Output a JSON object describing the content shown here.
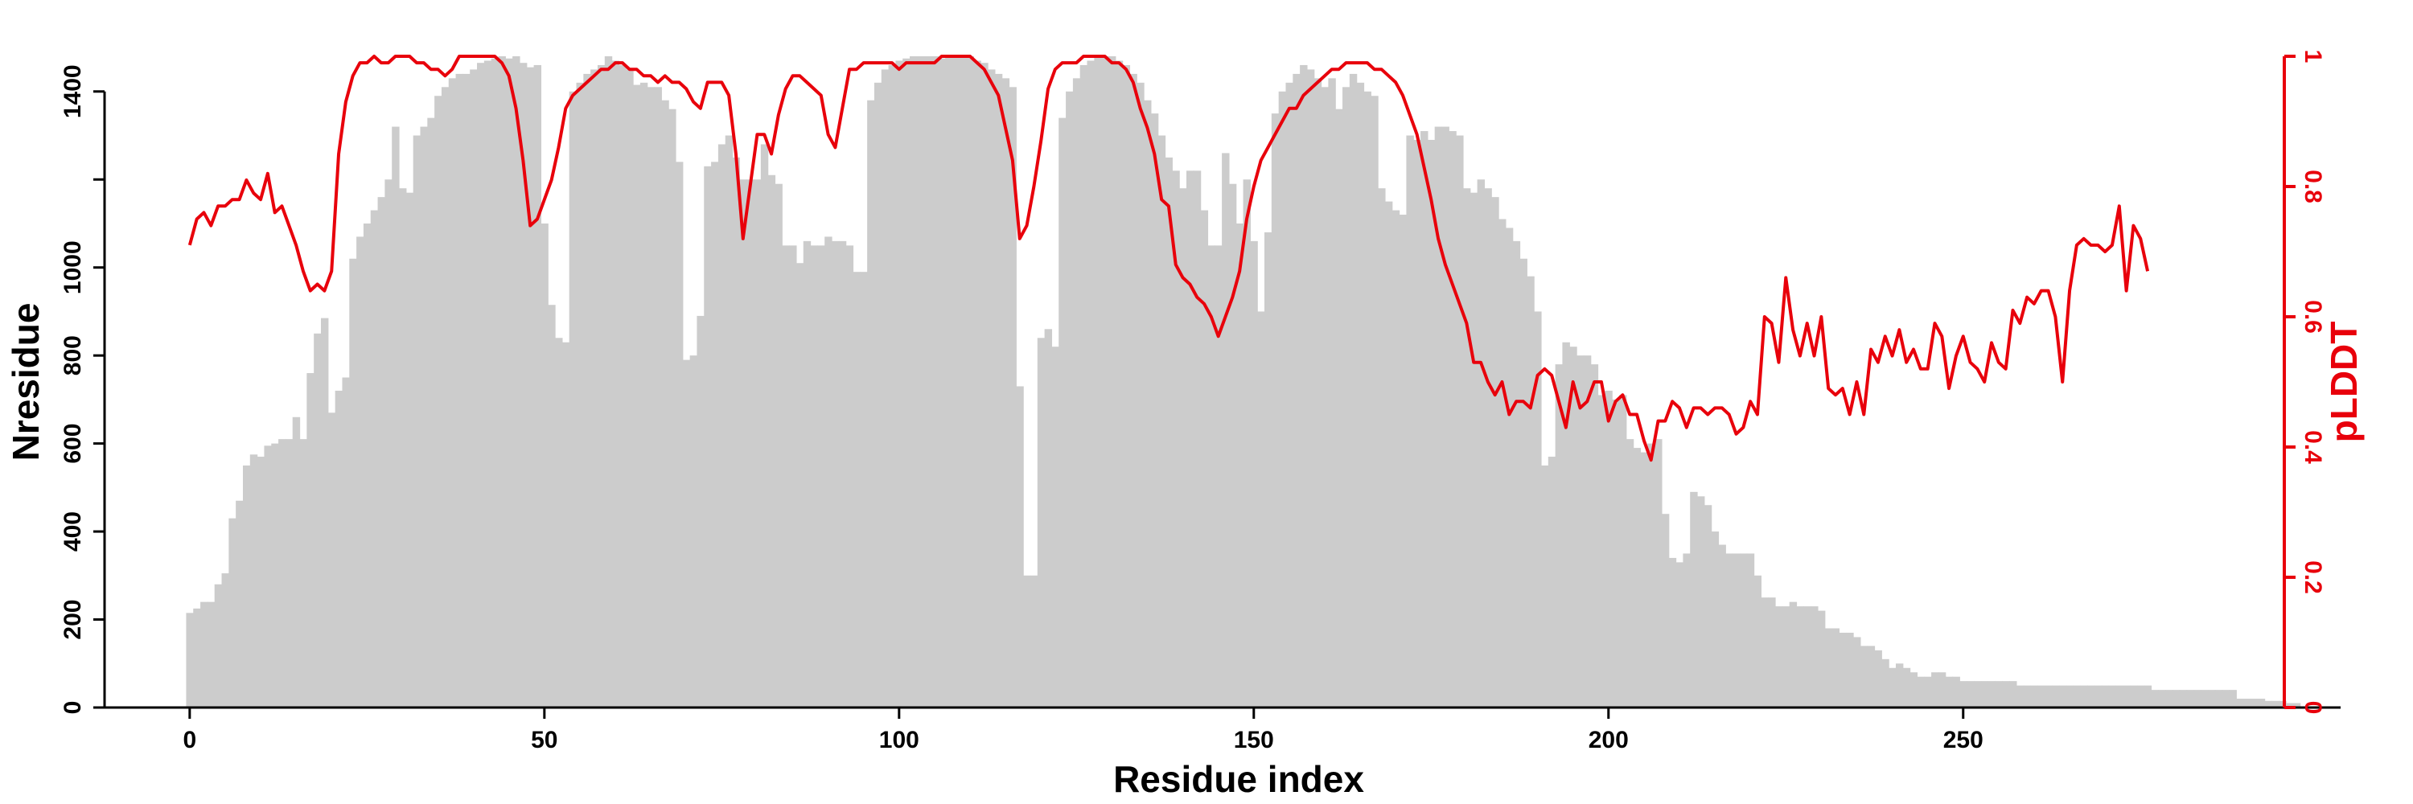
{
  "chart_data": {
    "type": "bar",
    "xlabel": "Residue index",
    "ylabel": "Nresidue",
    "y2label": "pLDDT",
    "xlim": [
      -12,
      293
    ],
    "ylim": [
      0,
      1480
    ],
    "y2lim": [
      0,
      1
    ],
    "xticks": [
      0,
      50,
      100,
      150,
      200,
      250
    ],
    "yticks": [
      0,
      200,
      400,
      600,
      800,
      1000,
      1200,
      1400
    ],
    "ytick_labels": [
      "0",
      "200",
      "400",
      "600",
      "800",
      "1000",
      "",
      "1400"
    ],
    "y2ticks": [
      0,
      0.2,
      0.4,
      0.6,
      0.8,
      1
    ],
    "y2tick_labels": [
      "0",
      "0.2",
      "0.4",
      "0.6",
      "0.8",
      "1"
    ],
    "grid": false,
    "colors": {
      "bars": "#cccccc",
      "line": "#e8000b",
      "axis": "#000000",
      "right_axis": "#e8000b"
    },
    "series": [
      {
        "kind": "bar",
        "x_start": 0,
        "values": [
          215,
          225,
          240,
          240,
          280,
          305,
          430,
          470,
          550,
          575,
          570,
          595,
          600,
          610,
          610,
          660,
          610,
          760,
          850,
          885,
          670,
          720,
          750,
          1020,
          1070,
          1100,
          1130,
          1160,
          1200,
          1320,
          1180,
          1170,
          1300,
          1320,
          1340,
          1390,
          1410,
          1430,
          1440,
          1440,
          1450,
          1465,
          1470,
          1475,
          1480,
          1475,
          1480,
          1465,
          1455,
          1460,
          1100,
          915,
          840,
          830,
          1400,
          1420,
          1440,
          1450,
          1460,
          1480,
          1470,
          1460,
          1450,
          1415,
          1420,
          1410,
          1410,
          1380,
          1360,
          1240,
          790,
          800,
          890,
          1230,
          1240,
          1280,
          1300,
          1250,
          1200,
          1200,
          1200,
          1280,
          1210,
          1190,
          1050,
          1050,
          1010,
          1060,
          1050,
          1050,
          1070,
          1060,
          1060,
          1050,
          990,
          990,
          1380,
          1420,
          1450,
          1460,
          1470,
          1475,
          1480,
          1480,
          1480,
          1480,
          1475,
          1480,
          1480,
          1480,
          1480,
          1470,
          1465,
          1450,
          1440,
          1430,
          1410,
          730,
          300,
          300,
          840,
          860,
          820,
          1340,
          1400,
          1430,
          1460,
          1470,
          1480,
          1480,
          1480,
          1470,
          1460,
          1440,
          1420,
          1380,
          1350,
          1300,
          1250,
          1220,
          1180,
          1220,
          1220,
          1130,
          1050,
          1050,
          1260,
          1190,
          1100,
          1200,
          1060,
          900,
          1080,
          1350,
          1400,
          1420,
          1440,
          1460,
          1450,
          1430,
          1410,
          1430,
          1360,
          1410,
          1440,
          1420,
          1400,
          1390,
          1180,
          1150,
          1130,
          1120,
          1300,
          1290,
          1310,
          1290,
          1320,
          1320,
          1310,
          1300,
          1180,
          1170,
          1200,
          1180,
          1160,
          1110,
          1090,
          1060,
          1020,
          980,
          900,
          550,
          570,
          780,
          830,
          820,
          800,
          800,
          780,
          710,
          720,
          700,
          710,
          610,
          590,
          580,
          600,
          610,
          440,
          340,
          330,
          350,
          490,
          480,
          460,
          400,
          370,
          350,
          350,
          350,
          350,
          300,
          250,
          250,
          230,
          230,
          240,
          230,
          230,
          230,
          220,
          180,
          180,
          170,
          170,
          160,
          140,
          140,
          130,
          110,
          90,
          100,
          90,
          80,
          70,
          70,
          80,
          80,
          70,
          70,
          60,
          60,
          60,
          60,
          60,
          60,
          60,
          60,
          50,
          50,
          50,
          50,
          50,
          50,
          50,
          50,
          50,
          50,
          50,
          50,
          50,
          50,
          50,
          50,
          50,
          50,
          50,
          40,
          40,
          40,
          40,
          40,
          40,
          40,
          40,
          40,
          40,
          40,
          40,
          20,
          20,
          20,
          20,
          15,
          15,
          15,
          10,
          10
        ]
      },
      {
        "kind": "line",
        "name": "pLDDT",
        "x_start": 0,
        "values": [
          0.71,
          0.75,
          0.76,
          0.74,
          0.77,
          0.77,
          0.78,
          0.78,
          0.81,
          0.79,
          0.78,
          0.82,
          0.76,
          0.77,
          0.74,
          0.71,
          0.67,
          0.64,
          0.65,
          0.64,
          0.67,
          0.85,
          0.93,
          0.97,
          0.99,
          0.99,
          1.0,
          0.99,
          0.99,
          1.0,
          1.0,
          1.0,
          0.99,
          0.99,
          0.98,
          0.98,
          0.97,
          0.98,
          1.0,
          1.0,
          1.0,
          1.0,
          1.0,
          1.0,
          0.99,
          0.97,
          0.92,
          0.84,
          0.74,
          0.75,
          0.78,
          0.81,
          0.86,
          0.92,
          0.94,
          0.95,
          0.96,
          0.97,
          0.98,
          0.98,
          0.99,
          0.99,
          0.98,
          0.98,
          0.97,
          0.97,
          0.96,
          0.97,
          0.96,
          0.96,
          0.95,
          0.93,
          0.92,
          0.96,
          0.96,
          0.96,
          0.94,
          0.85,
          0.72,
          0.8,
          0.88,
          0.88,
          0.85,
          0.91,
          0.95,
          0.97,
          0.97,
          0.96,
          0.95,
          0.94,
          0.88,
          0.86,
          0.92,
          0.98,
          0.98,
          0.99,
          0.99,
          0.99,
          0.99,
          0.99,
          0.98,
          0.99,
          0.99,
          0.99,
          0.99,
          0.99,
          1.0,
          1.0,
          1.0,
          1.0,
          1.0,
          0.99,
          0.98,
          0.96,
          0.94,
          0.89,
          0.84,
          0.72,
          0.74,
          0.8,
          0.87,
          0.95,
          0.98,
          0.99,
          0.99,
          0.99,
          1.0,
          1.0,
          1.0,
          1.0,
          0.99,
          0.99,
          0.98,
          0.96,
          0.92,
          0.89,
          0.85,
          0.78,
          0.77,
          0.68,
          0.66,
          0.65,
          0.63,
          0.62,
          0.6,
          0.57,
          0.6,
          0.63,
          0.67,
          0.75,
          0.8,
          0.84,
          0.86,
          0.88,
          0.9,
          0.92,
          0.92,
          0.94,
          0.95,
          0.96,
          0.97,
          0.98,
          0.98,
          0.99,
          0.99,
          0.99,
          0.99,
          0.98,
          0.98,
          0.97,
          0.96,
          0.94,
          0.91,
          0.88,
          0.83,
          0.78,
          0.72,
          0.68,
          0.65,
          0.62,
          0.59,
          0.53,
          0.53,
          0.5,
          0.48,
          0.5,
          0.45,
          0.47,
          0.47,
          0.46,
          0.51,
          0.52,
          0.51,
          0.47,
          0.43,
          0.5,
          0.46,
          0.47,
          0.5,
          0.5,
          0.44,
          0.47,
          0.48,
          0.45,
          0.45,
          0.41,
          0.38,
          0.44,
          0.44,
          0.47,
          0.46,
          0.43,
          0.46,
          0.46,
          0.45,
          0.46,
          0.46,
          0.45,
          0.42,
          0.43,
          0.47,
          0.45,
          0.6,
          0.59,
          0.53,
          0.66,
          0.58,
          0.54,
          0.59,
          0.54,
          0.6,
          0.49,
          0.48,
          0.49,
          0.45,
          0.5,
          0.45,
          0.55,
          0.53,
          0.57,
          0.54,
          0.58,
          0.53,
          0.55,
          0.52,
          0.52,
          0.59,
          0.57,
          0.49,
          0.54,
          0.57,
          0.53,
          0.52,
          0.5,
          0.56,
          0.53,
          0.52,
          0.61,
          0.59,
          0.63,
          0.62,
          0.64,
          0.64,
          0.6,
          0.5,
          0.64,
          0.71,
          0.72,
          0.71,
          0.71,
          0.7,
          0.71,
          0.77,
          0.64,
          0.74,
          0.72,
          0.67
        ]
      }
    ]
  }
}
